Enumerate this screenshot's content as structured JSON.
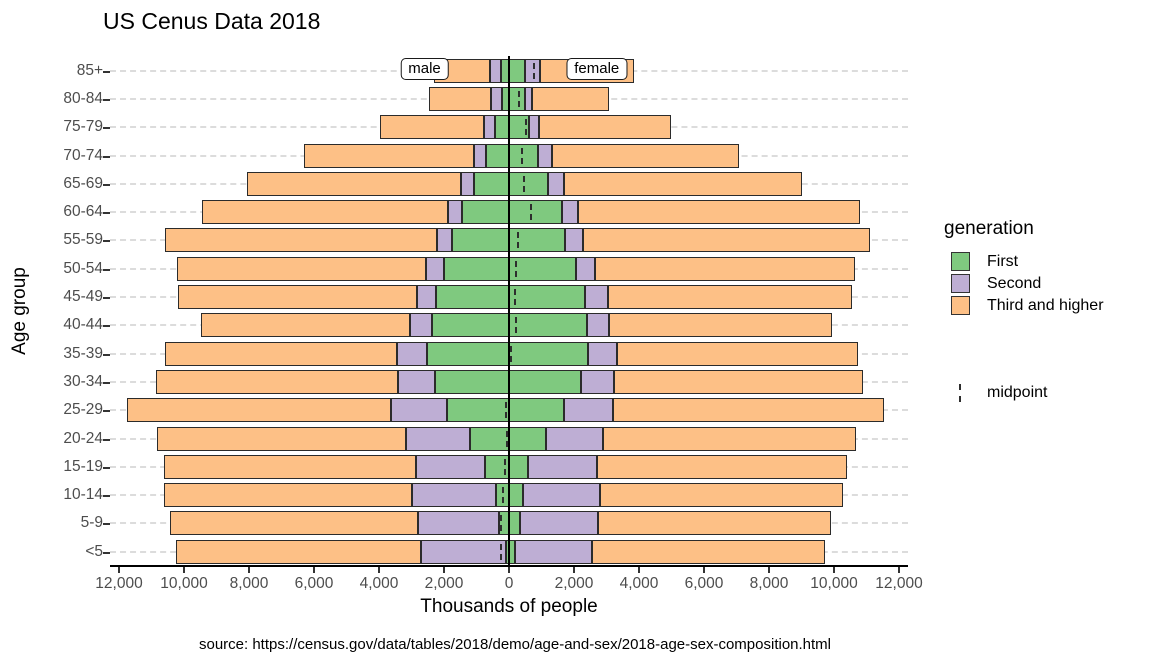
{
  "title": "US Cenus Data 2018",
  "caption": "source: https://census.gov/data/tables/2018/demo/age-and-sex/2018-age-sex-composition.html",
  "axes": {
    "x_label": "Thousands of people",
    "y_label": "Age group",
    "x_tick_labels": [
      "12,000",
      "10,000",
      "8,000",
      "6,000",
      "4,000",
      "2,000",
      "0",
      "2,000",
      "4,000",
      "6,000",
      "8,000",
      "10,000",
      "12,000"
    ],
    "x_tick_values": [
      -12000,
      -10000,
      -8000,
      -6000,
      -4000,
      -2000,
      0,
      2000,
      4000,
      6000,
      8000,
      10000,
      12000
    ]
  },
  "annotations": {
    "male": {
      "text": "male",
      "x": -2600
    },
    "female": {
      "text": "female",
      "x": 2700
    }
  },
  "legend": {
    "title": "generation",
    "items": [
      {
        "label": "First",
        "color": "#7FC97F"
      },
      {
        "label": "Second",
        "color": "#BEAED4"
      },
      {
        "label": "Third and higher",
        "color": "#FDC086"
      }
    ],
    "midpoint": {
      "label": "midpoint"
    }
  },
  "colors": {
    "first": "#7FC97F",
    "second": "#BEAED4",
    "third_and_higher": "#FDC086",
    "bar_border": "#2b2b2b",
    "gridline": "#dcdcdc",
    "axis_text": "#4d4d4d",
    "axis_line": "#000000"
  },
  "chart_data": {
    "type": "bar",
    "subtype": "population-pyramid-stacked",
    "unit": "thousands of people",
    "left_side": "male",
    "right_side": "female",
    "x_range": [
      -12000,
      12000
    ],
    "generations": [
      "First",
      "Second",
      "Third and higher"
    ],
    "age_groups_top_to_bottom": [
      "85+",
      "80-84",
      "75-79",
      "70-74",
      "65-69",
      "60-64",
      "55-59",
      "50-54",
      "45-49",
      "40-44",
      "35-39",
      "30-34",
      "25-29",
      "20-24",
      "15-19",
      "10-14",
      "5-9",
      "<5"
    ],
    "rows": [
      {
        "age": "85+",
        "male": {
          "first": 250,
          "second": 330,
          "third": 1730
        },
        "female": {
          "first": 490,
          "second": 460,
          "third": 2910
        },
        "midpoint": 775
      },
      {
        "age": "80-84",
        "male": {
          "first": 230,
          "second": 330,
          "third": 1910
        },
        "female": {
          "first": 490,
          "second": 230,
          "third": 2360
        },
        "midpoint": 305
      },
      {
        "age": "75-79",
        "male": {
          "first": 430,
          "second": 330,
          "third": 3220
        },
        "female": {
          "first": 620,
          "second": 300,
          "third": 4080
        },
        "midpoint": 510
      },
      {
        "age": "70-74",
        "male": {
          "first": 720,
          "second": 360,
          "third": 5230
        },
        "female": {
          "first": 880,
          "second": 450,
          "third": 5760
        },
        "midpoint": 390
      },
      {
        "age": "65-69",
        "male": {
          "first": 1070,
          "second": 400,
          "third": 6600
        },
        "female": {
          "first": 1190,
          "second": 510,
          "third": 7300
        },
        "midpoint": 465
      },
      {
        "age": "60-64",
        "male": {
          "first": 1460,
          "second": 420,
          "third": 7560
        },
        "female": {
          "first": 1620,
          "second": 510,
          "third": 8670
        },
        "midpoint": 680
      },
      {
        "age": "55-59",
        "male": {
          "first": 1740,
          "second": 470,
          "third": 8370
        },
        "female": {
          "first": 1720,
          "second": 570,
          "third": 8820
        },
        "midpoint": 265
      },
      {
        "age": "50-54",
        "male": {
          "first": 2010,
          "second": 550,
          "third": 7650
        },
        "female": {
          "first": 2070,
          "second": 590,
          "third": 8000
        },
        "midpoint": 225
      },
      {
        "age": "45-49",
        "male": {
          "first": 2250,
          "second": 590,
          "third": 7330
        },
        "female": {
          "first": 2340,
          "second": 710,
          "third": 7490
        },
        "midpoint": 185
      },
      {
        "age": "40-44",
        "male": {
          "first": 2360,
          "second": 700,
          "third": 6430
        },
        "female": {
          "first": 2390,
          "second": 700,
          "third": 6850
        },
        "midpoint": 225
      },
      {
        "age": "35-39",
        "male": {
          "first": 2530,
          "second": 930,
          "third": 7140
        },
        "female": {
          "first": 2440,
          "second": 870,
          "third": 7430
        },
        "midpoint": 70
      },
      {
        "age": "30-34",
        "male": {
          "first": 2290,
          "second": 1140,
          "third": 7430
        },
        "female": {
          "first": 2210,
          "second": 1020,
          "third": 7650
        },
        "midpoint": 10
      },
      {
        "age": "25-29",
        "male": {
          "first": 1920,
          "second": 1700,
          "third": 8120
        },
        "female": {
          "first": 1700,
          "second": 1490,
          "third": 8360
        },
        "midpoint": -95
      },
      {
        "age": "20-24",
        "male": {
          "first": 1190,
          "second": 1980,
          "third": 7650
        },
        "female": {
          "first": 1140,
          "second": 1760,
          "third": 7770
        },
        "midpoint": -75
      },
      {
        "age": "15-19",
        "male": {
          "first": 730,
          "second": 2130,
          "third": 7770
        },
        "female": {
          "first": 570,
          "second": 2150,
          "third": 7690
        },
        "midpoint": -110
      },
      {
        "age": "10-14",
        "male": {
          "first": 400,
          "second": 2580,
          "third": 7650
        },
        "female": {
          "first": 420,
          "second": 2380,
          "third": 7480
        },
        "midpoint": -175
      },
      {
        "age": "5-9",
        "male": {
          "first": 300,
          "second": 2510,
          "third": 7610
        },
        "female": {
          "first": 340,
          "second": 2410,
          "third": 7170
        },
        "midpoint": -250
      },
      {
        "age": "<5",
        "male": {
          "first": 100,
          "second": 2620,
          "third": 7530
        },
        "female": {
          "first": 180,
          "second": 2380,
          "third": 7170
        },
        "midpoint": -260
      }
    ]
  }
}
